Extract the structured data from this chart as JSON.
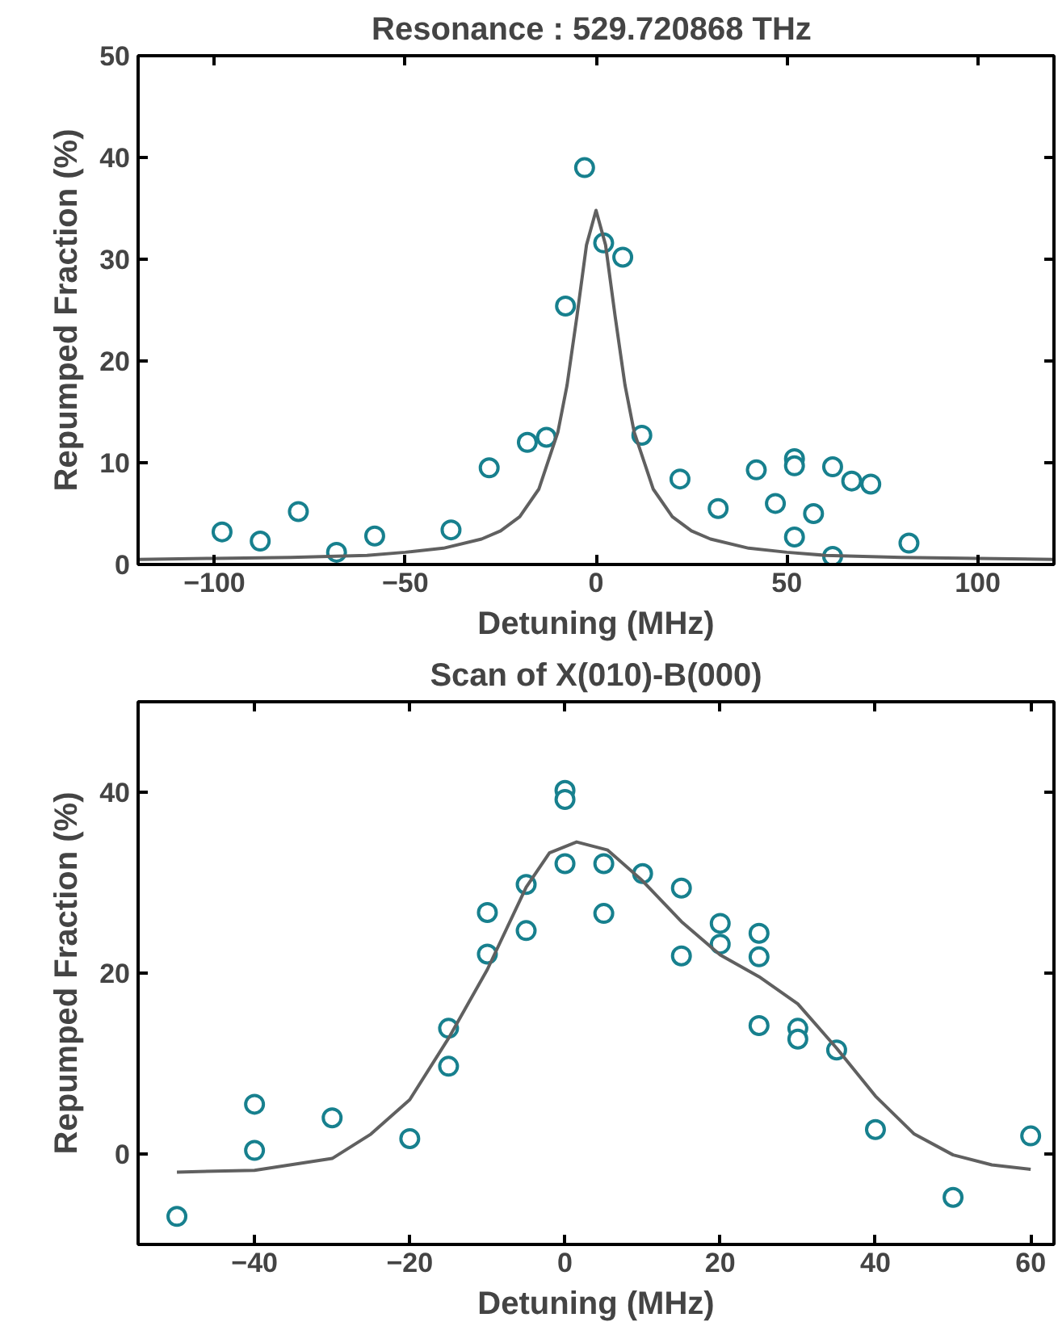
{
  "chart_data": [
    {
      "type": "scatter",
      "title": "Resonance :  529.720868 THz",
      "xlabel": "Detuning (MHz)",
      "ylabel": "Repumped Fraction (%)",
      "xlim": [
        -120,
        120
      ],
      "ylim": [
        0,
        50
      ],
      "xticks": [
        -100,
        -50,
        0,
        50,
        100
      ],
      "yticks": [
        0,
        10,
        20,
        30,
        40,
        50
      ],
      "grid": false,
      "series": [
        {
          "marker": "circle",
          "color": "#17808e",
          "x": [
            -98,
            -88,
            -78,
            -68,
            -58,
            -38,
            -28,
            -18,
            -13,
            -8,
            -3,
            2,
            7,
            12,
            22,
            32,
            42,
            47,
            52,
            52,
            52,
            57,
            62,
            62,
            67,
            72,
            82
          ],
          "values": [
            3.2,
            2.3,
            5.2,
            1.2,
            2.8,
            3.4,
            9.5,
            12.0,
            12.5,
            25.4,
            39.0,
            31.6,
            30.2,
            12.7,
            8.4,
            5.5,
            9.3,
            6.0,
            10.4,
            9.7,
            2.7,
            5.0,
            9.6,
            0.8,
            8.2,
            7.9,
            2.1
          ]
        },
        {
          "type": "line",
          "color": "#606060",
          "x": [
            -120,
            -100,
            -80,
            -60,
            -50,
            -40,
            -30,
            -25,
            -20,
            -15,
            -10,
            -7.6,
            -5,
            -2.5,
            0,
            2.5,
            5,
            7.6,
            10,
            15,
            20,
            25,
            30,
            40,
            50,
            60,
            80,
            100,
            120
          ],
          "values": [
            0.5,
            0.6,
            0.7,
            0.9,
            1.2,
            1.6,
            2.5,
            3.3,
            4.7,
            7.4,
            13,
            17.6,
            24.4,
            31.4,
            34.8,
            31.4,
            24.4,
            17.6,
            13,
            7.4,
            4.7,
            3.3,
            2.5,
            1.6,
            1.2,
            0.9,
            0.7,
            0.6,
            0.5
          ]
        }
      ]
    },
    {
      "type": "scatter",
      "title": "Scan of X(010)-B(000)",
      "xlabel": "Detuning (MHz)",
      "ylabel": "Repumped Fraction (%)",
      "xlim": [
        -55,
        63
      ],
      "ylim": [
        -10,
        50
      ],
      "xticks": [
        -40,
        -20,
        0,
        20,
        40,
        60
      ],
      "yticks": [
        0,
        20,
        40
      ],
      "grid": false,
      "series": [
        {
          "marker": "circle",
          "color": "#17808e",
          "x": [
            -50,
            -40,
            -40,
            -30,
            -20,
            -15,
            -15,
            -10,
            -10,
            -5,
            -5,
            0,
            0,
            0,
            5,
            5,
            10,
            15,
            15,
            20,
            20,
            25,
            25,
            25,
            30,
            30,
            35,
            40,
            50,
            60
          ],
          "values": [
            -6.9,
            5.5,
            0.4,
            4.0,
            1.7,
            13.9,
            9.7,
            26.7,
            22.1,
            29.8,
            24.7,
            40.2,
            39.2,
            32.1,
            32.1,
            26.6,
            31.0,
            29.4,
            21.9,
            25.5,
            23.2,
            24.4,
            21.8,
            14.2,
            13.9,
            12.7,
            11.5,
            2.7,
            -4.8,
            2.0
          ]
        },
        {
          "type": "line",
          "color": "#606060",
          "x": [
            -50,
            -40,
            -30,
            -25,
            -20,
            -15,
            -10,
            -5,
            -2,
            1.5,
            5.5,
            10,
            15,
            20,
            25,
            30,
            35,
            40,
            45,
            50,
            55,
            60
          ],
          "values": [
            -2.0,
            -1.8,
            -0.5,
            2.2,
            6.0,
            12.8,
            20.4,
            29.5,
            33.3,
            34.5,
            33.6,
            30.2,
            25.7,
            22.0,
            19.6,
            16.6,
            11.7,
            6.4,
            2.2,
            -0.1,
            -1.2,
            -1.7
          ]
        }
      ]
    }
  ]
}
